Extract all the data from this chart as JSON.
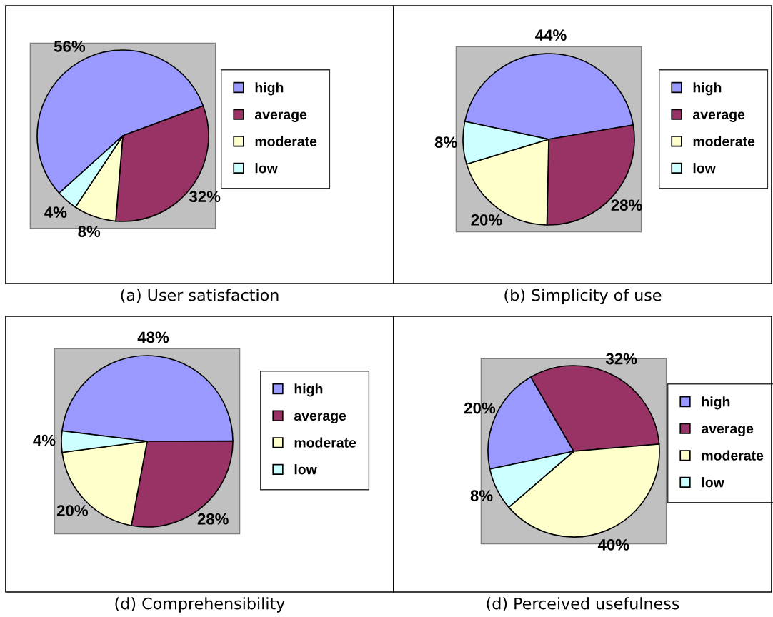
{
  "chart_data": [
    {
      "type": "pie",
      "title": "(a) User satisfaction",
      "categories": [
        "high",
        "average",
        "moderate",
        "low"
      ],
      "values": [
        56,
        32,
        8,
        4
      ],
      "value_labels": [
        "56%",
        "32%",
        "8%",
        "4%"
      ],
      "colors": [
        "#9999ff",
        "#993366",
        "#ffffcc",
        "#ccffff"
      ],
      "legend": "right"
    },
    {
      "type": "pie",
      "title": "(b) Simplicity of use",
      "categories": [
        "high",
        "average",
        "moderate",
        "low"
      ],
      "values": [
        44,
        28,
        20,
        8
      ],
      "value_labels": [
        "44%",
        "28%",
        "20%",
        "8%"
      ],
      "colors": [
        "#9999ff",
        "#993366",
        "#ffffcc",
        "#ccffff"
      ],
      "legend": "right"
    },
    {
      "type": "pie",
      "title": "(d) Comprehensibility",
      "categories": [
        "high",
        "average",
        "moderate",
        "low"
      ],
      "values": [
        48,
        28,
        20,
        4
      ],
      "value_labels": [
        "48%",
        "28%",
        "20%",
        "4%"
      ],
      "colors": [
        "#9999ff",
        "#993366",
        "#ffffcc",
        "#ccffff"
      ],
      "legend": "right"
    },
    {
      "type": "pie",
      "title": "(d) Perceived usefulness",
      "categories": [
        "high",
        "average",
        "moderate",
        "low"
      ],
      "values": [
        20,
        32,
        40,
        8
      ],
      "value_labels": [
        "20%",
        "32%",
        "40%",
        "8%"
      ],
      "colors": [
        "#9999ff",
        "#993366",
        "#ffffcc",
        "#ccffff"
      ],
      "legend": "right"
    }
  ]
}
